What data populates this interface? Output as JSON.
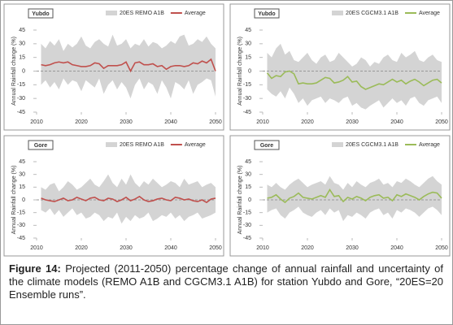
{
  "chart_data": [
    {
      "type": "band-line",
      "station": "Yubdo",
      "y_label": "Annual Rainfall change (%)",
      "ylim": [
        -45,
        45
      ],
      "yticks": [
        -45,
        -30,
        -15,
        0,
        15,
        30,
        45
      ],
      "xlim": [
        2010,
        2050
      ],
      "xticks": [
        2010,
        2020,
        2030,
        2040,
        2050
      ],
      "zero_line": true,
      "x": [
        2011,
        2012,
        2013,
        2014,
        2015,
        2016,
        2017,
        2018,
        2019,
        2020,
        2021,
        2022,
        2023,
        2024,
        2025,
        2026,
        2027,
        2028,
        2029,
        2030,
        2031,
        2032,
        2033,
        2034,
        2035,
        2036,
        2037,
        2038,
        2039,
        2040,
        2041,
        2042,
        2043,
        2044,
        2045,
        2046,
        2047,
        2048,
        2049,
        2050
      ],
      "series": [
        {
          "name": "20ES REMO A1B",
          "color": "#d4d4d4",
          "upper": [
            30,
            25,
            33,
            28,
            35,
            22,
            30,
            26,
            30,
            38,
            28,
            25,
            32,
            35,
            30,
            27,
            40,
            28,
            30,
            35,
            25,
            30,
            28,
            35,
            27,
            32,
            30,
            25,
            28,
            33,
            30,
            38,
            40,
            28,
            30,
            35,
            32,
            38,
            30,
            25
          ],
          "lower": [
            -15,
            -10,
            -18,
            -12,
            -20,
            -8,
            -15,
            -10,
            -12,
            -22,
            -10,
            -14,
            -18,
            -8,
            -25,
            -15,
            -10,
            -20,
            -12,
            -18,
            -30,
            -15,
            -8,
            -20,
            -12,
            -15,
            -25,
            -10,
            -18,
            -30,
            -12,
            -15,
            -20,
            -10,
            -25,
            -15,
            -12,
            -8,
            -10,
            -28
          ]
        },
        {
          "name": "Average",
          "color": "#c0504d",
          "values": [
            7,
            6,
            7,
            9,
            10,
            9,
            10,
            7,
            6,
            5,
            5,
            6,
            9,
            8,
            3,
            6,
            6,
            6,
            7,
            10,
            0,
            9,
            10,
            7,
            7,
            8,
            5,
            6,
            2,
            5,
            6,
            6,
            5,
            6,
            9,
            8,
            11,
            9,
            13,
            0
          ]
        }
      ]
    },
    {
      "type": "band-line",
      "station": "Yubdo",
      "y_label": "Annual Rainfall change (%)",
      "ylim": [
        -45,
        45
      ],
      "yticks": [
        -45,
        -30,
        -15,
        0,
        15,
        30,
        45
      ],
      "xlim": [
        2010,
        2050
      ],
      "xticks": [
        2010,
        2020,
        2030,
        2040,
        2050
      ],
      "zero_line": true,
      "x": [
        2011,
        2012,
        2013,
        2014,
        2015,
        2016,
        2017,
        2018,
        2019,
        2020,
        2021,
        2022,
        2023,
        2024,
        2025,
        2026,
        2027,
        2028,
        2029,
        2030,
        2031,
        2032,
        2033,
        2034,
        2035,
        2036,
        2037,
        2038,
        2039,
        2040,
        2041,
        2042,
        2043,
        2044,
        2045,
        2046,
        2047,
        2048,
        2049,
        2050
      ],
      "series": [
        {
          "name": "20ES  CGCM3.1 A1B",
          "color": "#d4d4d4",
          "upper": [
            20,
            15,
            25,
            30,
            18,
            22,
            12,
            10,
            15,
            20,
            12,
            8,
            15,
            18,
            10,
            12,
            20,
            15,
            10,
            5,
            8,
            15,
            12,
            5,
            10,
            8,
            15,
            18,
            12,
            10,
            20,
            15,
            18,
            22,
            12,
            10,
            15,
            18,
            12,
            10
          ],
          "lower": [
            -20,
            -25,
            -28,
            -22,
            -30,
            -18,
            -25,
            -35,
            -30,
            -38,
            -32,
            -30,
            -28,
            -35,
            -30,
            -32,
            -35,
            -30,
            -28,
            -38,
            -35,
            -40,
            -42,
            -38,
            -35,
            -32,
            -40,
            -35,
            -30,
            -35,
            -32,
            -38,
            -30,
            -28,
            -35,
            -38,
            -32,
            -30,
            -28,
            -35
          ]
        },
        {
          "name": "Average",
          "color": "#9bbb59",
          "values": [
            -2,
            -8,
            -5,
            -6,
            -1,
            0,
            -3,
            -14,
            -13,
            -14,
            -14,
            -13,
            -10,
            -7,
            -8,
            -13,
            -12,
            -10,
            -6,
            -12,
            -11,
            -17,
            -20,
            -18,
            -16,
            -14,
            -15,
            -12,
            -9,
            -12,
            -10,
            -14,
            -11,
            -9,
            -12,
            -16,
            -13,
            -10,
            -9,
            -13
          ]
        }
      ]
    },
    {
      "type": "band-line",
      "station": "Gore",
      "y_label": "Annual Rainfall change (%)",
      "ylim": [
        -45,
        45
      ],
      "yticks": [
        -45,
        -30,
        -15,
        0,
        15,
        30,
        45
      ],
      "xlim": [
        2010,
        2050
      ],
      "xticks": [
        2010,
        2020,
        2030,
        2040,
        2050
      ],
      "zero_line": true,
      "x": [
        2011,
        2012,
        2013,
        2014,
        2015,
        2016,
        2017,
        2018,
        2019,
        2020,
        2021,
        2022,
        2023,
        2024,
        2025,
        2026,
        2027,
        2028,
        2029,
        2030,
        2031,
        2032,
        2033,
        2034,
        2035,
        2036,
        2037,
        2038,
        2039,
        2040,
        2041,
        2042,
        2043,
        2044,
        2045,
        2046,
        2047,
        2048,
        2049,
        2050
      ],
      "series": [
        {
          "name": "20ES REMO A1B",
          "color": "#d4d4d4",
          "upper": [
            15,
            12,
            18,
            20,
            10,
            15,
            22,
            18,
            12,
            15,
            20,
            25,
            18,
            15,
            22,
            30,
            20,
            15,
            25,
            18,
            30,
            20,
            15,
            22,
            18,
            25,
            20,
            15,
            18,
            22,
            20,
            15,
            25,
            18,
            20,
            22,
            15,
            18,
            20,
            15
          ],
          "lower": [
            -12,
            -15,
            -10,
            -18,
            -12,
            -20,
            -15,
            -10,
            -18,
            -15,
            -22,
            -20,
            -15,
            -18,
            -25,
            -20,
            -22,
            -15,
            -28,
            -20,
            -25,
            -18,
            -22,
            -20,
            -15,
            -25,
            -22,
            -18,
            -20,
            -15,
            -22,
            -18,
            -25,
            -20,
            -18,
            -15,
            -22,
            -20,
            -18,
            -15
          ]
        },
        {
          "name": "Average",
          "color": "#c0504d",
          "values": [
            2,
            0,
            -1,
            -2,
            0,
            2,
            -1,
            0,
            3,
            1,
            -1,
            2,
            3,
            0,
            -1,
            2,
            1,
            -2,
            0,
            3,
            -1,
            1,
            4,
            0,
            -2,
            -1,
            1,
            2,
            0,
            -1,
            3,
            2,
            0,
            1,
            -1,
            -2,
            0,
            -3,
            1,
            2
          ]
        }
      ]
    },
    {
      "type": "band-line",
      "station": "Gore",
      "y_label": "Annual Rainfall change (%)",
      "ylim": [
        -45,
        45
      ],
      "yticks": [
        -45,
        -30,
        -15,
        0,
        15,
        30,
        45
      ],
      "xlim": [
        2010,
        2050
      ],
      "xticks": [
        2010,
        2020,
        2030,
        2040,
        2050
      ],
      "zero_line": true,
      "x": [
        2011,
        2012,
        2013,
        2014,
        2015,
        2016,
        2017,
        2018,
        2019,
        2020,
        2021,
        2022,
        2023,
        2024,
        2025,
        2026,
        2027,
        2028,
        2029,
        2030,
        2031,
        2032,
        2033,
        2034,
        2035,
        2036,
        2037,
        2038,
        2039,
        2040,
        2041,
        2042,
        2043,
        2044,
        2045,
        2046,
        2047,
        2048,
        2049,
        2050
      ],
      "series": [
        {
          "name": "20ES CGCM3.1 A1B",
          "color": "#d4d4d4",
          "upper": [
            18,
            15,
            20,
            15,
            12,
            18,
            22,
            25,
            20,
            15,
            18,
            20,
            22,
            18,
            28,
            20,
            18,
            12,
            20,
            15,
            22,
            18,
            15,
            20,
            22,
            25,
            18,
            20,
            15,
            22,
            20,
            25,
            22,
            18,
            15,
            20,
            25,
            28,
            22,
            18
          ],
          "lower": [
            -15,
            -12,
            -10,
            -18,
            -22,
            -15,
            -12,
            -8,
            -15,
            -18,
            -20,
            -15,
            -12,
            -18,
            -10,
            -15,
            -12,
            -25,
            -18,
            -20,
            -15,
            -18,
            -22,
            -15,
            -12,
            -10,
            -18,
            -15,
            -22,
            -12,
            -15,
            -10,
            -12,
            -15,
            -20,
            -15,
            -10,
            -8,
            -12,
            -18
          ]
        },
        {
          "name": "Average",
          "color": "#9bbb59",
          "values": [
            2,
            3,
            6,
            1,
            -3,
            2,
            4,
            8,
            3,
            2,
            1,
            3,
            5,
            3,
            12,
            4,
            5,
            -2,
            3,
            1,
            4,
            2,
            -1,
            3,
            5,
            6,
            2,
            3,
            -1,
            6,
            4,
            7,
            5,
            3,
            0,
            4,
            7,
            9,
            8,
            2
          ]
        }
      ]
    }
  ],
  "caption": {
    "label": "Figure 14:",
    "text": "Projected (2011-2050) percentage change of  annual rainfall and uncertainty of the climate models (REMO A1B and CGCM3.1 A1B) for station Yubdo and Gore, “20ES=20 Ensemble runs”."
  }
}
